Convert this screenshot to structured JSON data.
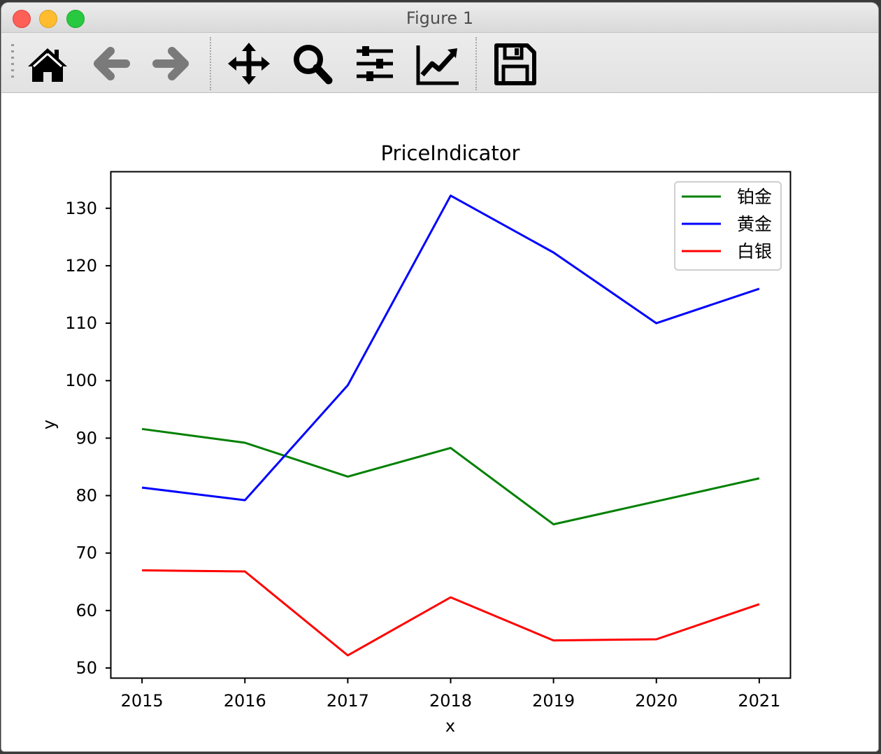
{
  "window": {
    "title": "Figure 1"
  },
  "toolbar": {
    "buttons": [
      "home-icon",
      "back-arrow-icon",
      "forward-arrow-icon",
      "move-icon",
      "zoom-icon",
      "configure-subplots-icon",
      "edit-axis-icon",
      "save-icon"
    ]
  },
  "colors": {
    "platinum": "#008000",
    "gold": "#0000ff",
    "silver": "#ff0000"
  },
  "chart_data": {
    "type": "line",
    "title": "PriceIndicator",
    "xlabel": "x",
    "ylabel": "y",
    "x": [
      2015,
      2016,
      2017,
      2018,
      2019,
      2020,
      2021
    ],
    "x_tick_labels": [
      "2015",
      "2016",
      "2017",
      "2018",
      "2019",
      "2020",
      "2021"
    ],
    "y_ticks": [
      50,
      60,
      70,
      80,
      90,
      100,
      110,
      120,
      130
    ],
    "y_tick_labels": [
      "50",
      "60",
      "70",
      "80",
      "90",
      "100",
      "110",
      "120",
      "130"
    ],
    "xlim": [
      2014.7,
      2021.3
    ],
    "ylim": [
      48.3,
      136.3
    ],
    "legend_position": "top-right",
    "grid": false,
    "series": [
      {
        "name": "铂金",
        "color": "#008000",
        "values": [
          91.6,
          89.2,
          83.3,
          88.3,
          75.0,
          79.0,
          83.0
        ]
      },
      {
        "name": "黄金",
        "color": "#0000ff",
        "values": [
          81.4,
          79.2,
          99.2,
          132.2,
          122.3,
          110.0,
          116.0
        ]
      },
      {
        "name": "白银",
        "color": "#ff0000",
        "values": [
          67.0,
          66.8,
          52.2,
          62.3,
          54.8,
          55.0,
          61.1
        ]
      }
    ]
  }
}
